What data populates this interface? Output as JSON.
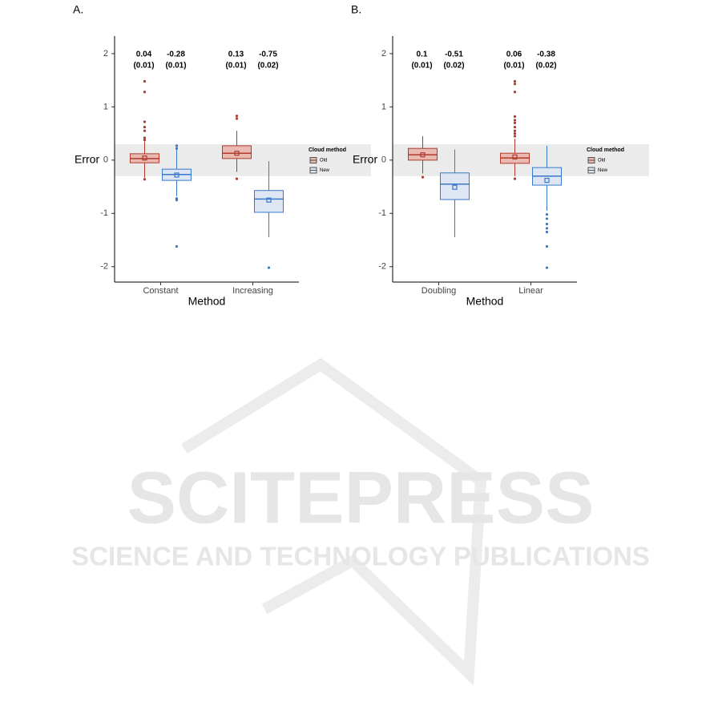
{
  "watermark": {
    "title": "SCITEPRESS",
    "subtitle": "SCIENCE AND TECHNOLOGY PUBLICATIONS"
  },
  "chart_data": [
    {
      "type": "box",
      "panel_label": "A.",
      "ylabel": "Error",
      "xlabel": "Method",
      "categories": [
        "Constant",
        "Increasing"
      ],
      "legend_title": "Cloud method",
      "ylim": [
        -2.29,
        2.33
      ],
      "yticks": [
        -2,
        -1,
        0,
        1,
        2
      ],
      "band": [
        -0.3,
        0.3
      ],
      "series": [
        {
          "name": "Old",
          "color": "#b03a2e",
          "fill": "#e9b9b2",
          "whisker_low": [
            -0.33,
            -0.22
          ],
          "q1": [
            -0.05,
            0.03
          ],
          "median": [
            0.03,
            0.13
          ],
          "q3": [
            0.12,
            0.27
          ],
          "whisker_high": [
            0.35,
            0.55
          ],
          "values": [
            0.04,
            0.13
          ],
          "value_labels": [
            "0.04",
            "0.13"
          ],
          "se_labels": [
            "(0.01)",
            "(0.01)"
          ],
          "outliers": [
            [
              1.48,
              1.28,
              0.72,
              0.62,
              0.55,
              0.42,
              0.38,
              -0.36
            ],
            [
              0.83,
              0.78,
              -0.35
            ]
          ]
        },
        {
          "name": "New",
          "color": "#3a78c9",
          "fill": "#dde6f2",
          "whisker_low": [
            -0.68,
            -1.45
          ],
          "q1": [
            -0.38,
            -0.98
          ],
          "median": [
            -0.27,
            -0.73
          ],
          "q3": [
            -0.17,
            -0.57
          ],
          "whisker_high": [
            0.2,
            -0.02
          ],
          "values": [
            -0.28,
            -0.75
          ],
          "value_labels": [
            "-0.28",
            "-0.75"
          ],
          "se_labels": [
            "(0.01)",
            "(0.02)"
          ],
          "outliers": [
            [
              0.27,
              0.22,
              -0.72,
              -0.75,
              -1.62
            ],
            [
              -2.02
            ]
          ]
        }
      ]
    },
    {
      "type": "box",
      "panel_label": "B.",
      "ylabel": "Error",
      "xlabel": "Method",
      "categories": [
        "Doubling",
        "Linear"
      ],
      "legend_title": "Cloud method",
      "ylim": [
        -2.29,
        2.33
      ],
      "yticks": [
        -2,
        -1,
        0,
        1,
        2
      ],
      "band": [
        -0.3,
        0.3
      ],
      "series": [
        {
          "name": "Old",
          "color": "#b03a2e",
          "fill": "#e9b9b2",
          "whisker_low": [
            -0.25,
            -0.3
          ],
          "q1": [
            0.0,
            -0.06
          ],
          "median": [
            0.1,
            0.04
          ],
          "q3": [
            0.22,
            0.13
          ],
          "whisker_high": [
            0.45,
            0.4
          ],
          "values": [
            0.1,
            0.06
          ],
          "value_labels": [
            "0.1",
            "0.06"
          ],
          "se_labels": [
            "(0.01)",
            "(0.01)"
          ],
          "outliers": [
            [
              -0.32
            ],
            [
              1.48,
              1.43,
              1.28,
              0.82,
              0.75,
              0.7,
              0.62,
              0.55,
              0.5,
              0.45,
              -0.35
            ]
          ]
        },
        {
          "name": "New",
          "color": "#3a78c9",
          "fill": "#dde6f2",
          "whisker_low": [
            -1.45,
            -0.95
          ],
          "q1": [
            -0.74,
            -0.47
          ],
          "median": [
            -0.45,
            -0.3
          ],
          "q3": [
            -0.24,
            -0.14
          ],
          "whisker_high": [
            0.2,
            0.27
          ],
          "values": [
            -0.51,
            -0.38
          ],
          "value_labels": [
            "-0.51",
            "-0.38"
          ],
          "se_labels": [
            "(0.02)",
            "(0.02)"
          ],
          "outliers": [
            [],
            [
              -1.02,
              -1.1,
              -1.2,
              -1.28,
              -1.35,
              -1.62,
              -2.02
            ]
          ]
        }
      ]
    }
  ]
}
